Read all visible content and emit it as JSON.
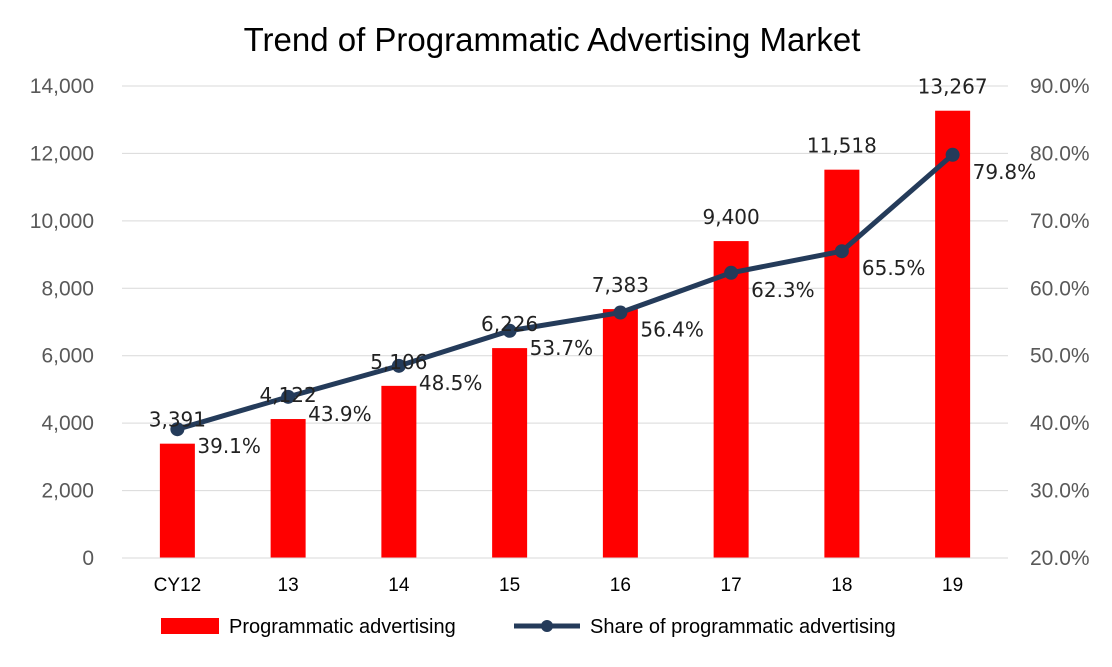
{
  "chart_data": {
    "type": "bar",
    "title": "Trend of Programmatic Advertising Market",
    "xlabel": "",
    "ylabel": "",
    "categories": [
      "CY12",
      "13",
      "14",
      "15",
      "16",
      "17",
      "18",
      "19"
    ],
    "series": [
      {
        "name": "Programmatic advertising",
        "type": "bar",
        "axis": "left",
        "color": "#ff0000",
        "values": [
          3391,
          4122,
          5106,
          6226,
          7383,
          9400,
          11518,
          13267
        ],
        "labels": [
          "3,391",
          "4,122",
          "5,106",
          "6,226",
          "7,383",
          "9,400",
          "11,518",
          "13,267"
        ]
      },
      {
        "name": "Share of programmatic advertising",
        "type": "line",
        "axis": "right",
        "color": "#243b5a",
        "values": [
          39.1,
          43.9,
          48.5,
          53.7,
          56.4,
          62.3,
          65.5,
          79.8
        ],
        "labels": [
          "39.1%",
          "43.9%",
          "48.5%",
          "53.7%",
          "56.4%",
          "62.3%",
          "65.5%",
          "79.8%"
        ]
      }
    ],
    "ylim": [
      0,
      14000
    ],
    "y_ticks": [
      "0",
      "2,000",
      "4,000",
      "6,000",
      "8,000",
      "10,000",
      "12,000",
      "14,000"
    ],
    "y2lim": [
      20,
      90
    ],
    "y2_ticks": [
      "20.0%",
      "30.0%",
      "40.0%",
      "50.0%",
      "60.0%",
      "70.0%",
      "80.0%",
      "90.0%"
    ],
    "grid": true,
    "legend_position": "bottom"
  }
}
